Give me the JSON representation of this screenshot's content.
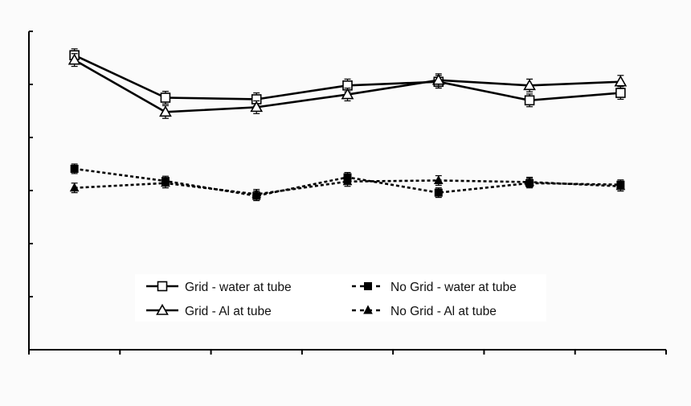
{
  "chart_data": {
    "type": "line",
    "title": "",
    "xlabel": "",
    "ylabel": "",
    "x": [
      1,
      2,
      3,
      4,
      5,
      6,
      7
    ],
    "xlim": [
      0.5,
      7.5
    ],
    "ylim": [
      0,
      6
    ],
    "grid": false,
    "legend_position": "bottom-center",
    "series": [
      {
        "name": "Grid - water at tube",
        "marker": "square-open",
        "line": "solid",
        "color": "#000000",
        "values": [
          5.55,
          4.75,
          4.72,
          4.98,
          5.05,
          4.7,
          4.84
        ],
        "errors": [
          0.12,
          0.12,
          0.12,
          0.12,
          0.12,
          0.12,
          0.12
        ]
      },
      {
        "name": "Grid - Al at tube",
        "marker": "triangle-open",
        "line": "solid",
        "color": "#000000",
        "values": [
          5.46,
          4.48,
          4.57,
          4.81,
          5.08,
          4.98,
          5.05
        ],
        "errors": [
          0.12,
          0.12,
          0.12,
          0.12,
          0.12,
          0.12,
          0.12
        ]
      },
      {
        "name": "No Grid - water at tube",
        "marker": "square-filled",
        "line": "dashed",
        "color": "#000000",
        "values": [
          3.41,
          3.18,
          2.9,
          3.25,
          2.96,
          3.14,
          3.11
        ],
        "errors": [
          0.09,
          0.09,
          0.09,
          0.09,
          0.09,
          0.09,
          0.09
        ]
      },
      {
        "name": "No Grid - Al at tube",
        "marker": "triangle-filled",
        "line": "dashed",
        "color": "#000000",
        "values": [
          3.05,
          3.14,
          2.93,
          3.17,
          3.19,
          3.16,
          3.08
        ],
        "errors": [
          0.09,
          0.09,
          0.09,
          0.09,
          0.09,
          0.09,
          0.09
        ]
      }
    ]
  }
}
